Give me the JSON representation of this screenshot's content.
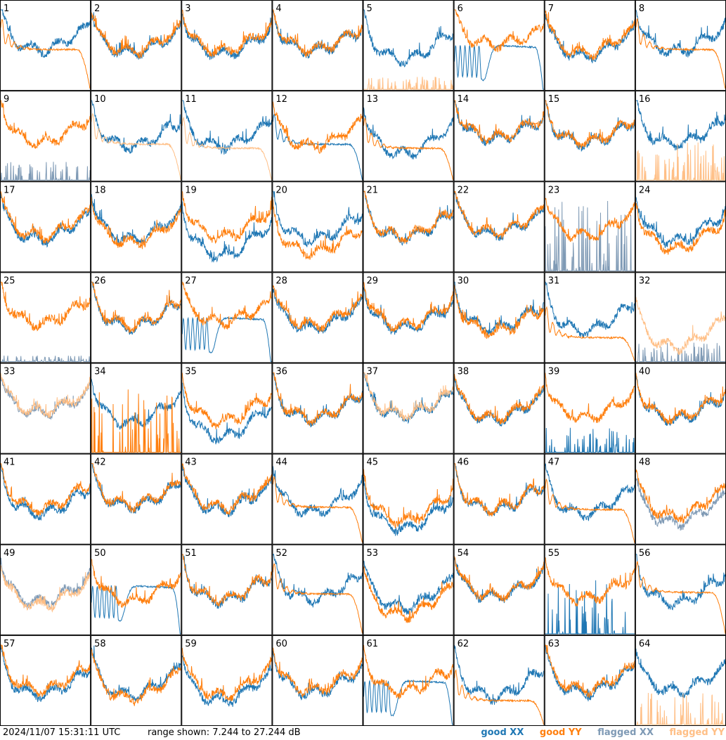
{
  "footer": {
    "timestamp": "2024/11/07 15:31:11 UTC",
    "range_text": "range shown: 7.244 to 27.244 dB"
  },
  "legend": [
    {
      "id": "good_xx",
      "label": "good XX",
      "color": "#1f77b4"
    },
    {
      "id": "good_yy",
      "label": "good YY",
      "color": "#ff7f0e"
    },
    {
      "id": "flagged_xx",
      "label": "flagged XX",
      "color": "#7f9ab5"
    },
    {
      "id": "flagged_yy",
      "label": "flagged YY",
      "color": "#ffbf86"
    }
  ],
  "chart_data": {
    "type": "line",
    "ylim": [
      7.244,
      27.244
    ],
    "grid": {
      "rows": 8,
      "cols": 8
    },
    "panels": [
      {
        "label": "1",
        "xx": {
          "profile": "bandpass",
          "flagged": false,
          "level": 0.72,
          "amp": 0.25
        },
        "yy": {
          "profile": "rolloff",
          "flagged": false,
          "level": 0.5
        }
      },
      {
        "label": "2",
        "xx": {
          "profile": "bandpass",
          "flagged": false,
          "level": 0.66,
          "amp": 0.22
        },
        "yy": {
          "profile": "bandpass",
          "flagged": false,
          "level": 0.68,
          "amp": 0.22
        }
      },
      {
        "label": "3",
        "xx": {
          "profile": "bandpass",
          "flagged": false,
          "level": 0.66,
          "amp": 0.24
        },
        "yy": {
          "profile": "bandpass",
          "flagged": false,
          "level": 0.7,
          "amp": 0.24
        }
      },
      {
        "label": "4",
        "xx": {
          "profile": "bandpass",
          "flagged": false,
          "level": 0.68,
          "amp": 0.22
        },
        "yy": {
          "profile": "bandpass",
          "flagged": false,
          "level": 0.7,
          "amp": 0.22
        }
      },
      {
        "label": "5",
        "xx": {
          "profile": "bandpass",
          "flagged": false,
          "level": 0.64,
          "amp": 0.3
        },
        "yy": {
          "profile": "spikes",
          "flagged": true,
          "level": 0.1
        }
      },
      {
        "label": "6",
        "xx": {
          "profile": "dip",
          "flagged": false,
          "level": 0.45
        },
        "yy": {
          "profile": "bandpass",
          "flagged": false,
          "level": 0.7,
          "amp": 0.15
        }
      },
      {
        "label": "7",
        "xx": {
          "profile": "bandpass",
          "flagged": false,
          "level": 0.64,
          "amp": 0.25
        },
        "yy": {
          "profile": "bandpass",
          "flagged": false,
          "level": 0.68,
          "amp": 0.25
        }
      },
      {
        "label": "8",
        "xx": {
          "profile": "bandpass",
          "flagged": false,
          "level": 0.7,
          "amp": 0.25
        },
        "yy": {
          "profile": "rolloff",
          "flagged": false,
          "level": 0.5
        }
      },
      {
        "label": "9",
        "xx": {
          "profile": "spikes",
          "flagged": true,
          "level": 0.15
        },
        "yy": {
          "profile": "bandpass",
          "flagged": false,
          "level": 0.7,
          "amp": 0.25
        }
      },
      {
        "label": "10",
        "xx": {
          "profile": "bandpass",
          "flagged": false,
          "level": 0.65,
          "amp": 0.25
        },
        "yy": {
          "profile": "rolloff",
          "flagged": true,
          "level": 0.45
        }
      },
      {
        "label": "11",
        "xx": {
          "profile": "bandpass",
          "flagged": false,
          "level": 0.65,
          "amp": 0.25
        },
        "yy": {
          "profile": "rolloff",
          "flagged": true,
          "level": 0.4
        }
      },
      {
        "label": "12",
        "xx": {
          "profile": "rolloff",
          "flagged": false,
          "level": 0.45
        },
        "yy": {
          "profile": "bandpass",
          "flagged": false,
          "level": 0.65,
          "amp": 0.25
        }
      },
      {
        "label": "13",
        "xx": {
          "profile": "bandpass",
          "flagged": false,
          "level": 0.6,
          "amp": 0.3
        },
        "yy": {
          "profile": "rolloff",
          "flagged": false,
          "level": 0.4
        }
      },
      {
        "label": "14",
        "xx": {
          "profile": "bandpass",
          "flagged": false,
          "level": 0.7,
          "amp": 0.2
        },
        "yy": {
          "profile": "bandpass",
          "flagged": false,
          "level": 0.72,
          "amp": 0.2
        }
      },
      {
        "label": "15",
        "xx": {
          "profile": "bandpass",
          "flagged": false,
          "level": 0.66,
          "amp": 0.22
        },
        "yy": {
          "profile": "bandpass",
          "flagged": false,
          "level": 0.68,
          "amp": 0.22
        }
      },
      {
        "label": "16",
        "xx": {
          "profile": "bandpass",
          "flagged": false,
          "level": 0.66,
          "amp": 0.22
        },
        "yy": {
          "profile": "spikes",
          "flagged": true,
          "level": 0.3
        }
      },
      {
        "label": "17",
        "xx": {
          "profile": "bandpass",
          "flagged": false,
          "level": 0.62,
          "amp": 0.25
        },
        "yy": {
          "profile": "bandpass",
          "flagged": false,
          "level": 0.66,
          "amp": 0.25
        }
      },
      {
        "label": "18",
        "xx": {
          "profile": "bandpass",
          "flagged": false,
          "level": 0.64,
          "amp": 0.28
        },
        "yy": {
          "profile": "bandpass",
          "flagged": false,
          "level": 0.6,
          "amp": 0.28
        }
      },
      {
        "label": "19",
        "xx": {
          "profile": "bandpass",
          "flagged": false,
          "level": 0.5,
          "amp": 0.35
        },
        "yy": {
          "profile": "bandpass",
          "flagged": false,
          "level": 0.68,
          "amp": 0.28
        }
      },
      {
        "label": "20",
        "xx": {
          "profile": "bandpass",
          "flagged": false,
          "level": 0.64,
          "amp": 0.28
        },
        "yy": {
          "profile": "bandpass",
          "flagged": false,
          "level": 0.46,
          "amp": 0.25
        }
      },
      {
        "label": "21",
        "xx": {
          "profile": "bandpass",
          "flagged": false,
          "level": 0.64,
          "amp": 0.25
        },
        "yy": {
          "profile": "bandpass",
          "flagged": false,
          "level": 0.66,
          "amp": 0.25
        }
      },
      {
        "label": "22",
        "xx": {
          "profile": "bandpass",
          "flagged": false,
          "level": 0.66,
          "amp": 0.22
        },
        "yy": {
          "profile": "bandpass",
          "flagged": false,
          "level": 0.68,
          "amp": 0.22
        }
      },
      {
        "label": "23",
        "xx": {
          "profile": "spikes",
          "flagged": true,
          "level": 0.55
        },
        "yy": {
          "profile": "bandpass",
          "flagged": false,
          "level": 0.66,
          "amp": 0.25
        }
      },
      {
        "label": "24",
        "xx": {
          "profile": "bandpass",
          "flagged": false,
          "level": 0.64,
          "amp": 0.3
        },
        "yy": {
          "profile": "bandpass",
          "flagged": false,
          "level": 0.55,
          "amp": 0.3
        }
      },
      {
        "label": "25",
        "xx": {
          "profile": "spikes",
          "flagged": true,
          "level": 0.05
        },
        "yy": {
          "profile": "bandpass",
          "flagged": false,
          "level": 0.7,
          "amp": 0.25
        }
      },
      {
        "label": "26",
        "xx": {
          "profile": "bandpass",
          "flagged": false,
          "level": 0.66,
          "amp": 0.25
        },
        "yy": {
          "profile": "bandpass",
          "flagged": false,
          "level": 0.68,
          "amp": 0.25
        }
      },
      {
        "label": "27",
        "xx": {
          "profile": "dip",
          "flagged": false,
          "level": 0.45
        },
        "yy": {
          "profile": "bandpass",
          "flagged": false,
          "level": 0.68,
          "amp": 0.2
        }
      },
      {
        "label": "28",
        "xx": {
          "profile": "bandpass",
          "flagged": false,
          "level": 0.64,
          "amp": 0.25
        },
        "yy": {
          "profile": "bandpass",
          "flagged": false,
          "level": 0.68,
          "amp": 0.25
        }
      },
      {
        "label": "29",
        "xx": {
          "profile": "bandpass",
          "flagged": false,
          "level": 0.64,
          "amp": 0.25
        },
        "yy": {
          "profile": "bandpass",
          "flagged": false,
          "level": 0.68,
          "amp": 0.25
        }
      },
      {
        "label": "30",
        "xx": {
          "profile": "bandpass",
          "flagged": false,
          "level": 0.64,
          "amp": 0.25
        },
        "yy": {
          "profile": "bandpass",
          "flagged": false,
          "level": 0.6,
          "amp": 0.25
        }
      },
      {
        "label": "31",
        "xx": {
          "profile": "bandpass",
          "flagged": false,
          "level": 0.64,
          "amp": 0.28
        },
        "yy": {
          "profile": "rolloff",
          "flagged": false,
          "level": 0.3
        }
      },
      {
        "label": "32",
        "xx": {
          "profile": "spikes",
          "flagged": true,
          "level": 0.15
        },
        "yy": {
          "profile": "bandpass",
          "flagged": true,
          "level": 0.45,
          "amp": 0.3
        }
      },
      {
        "label": "33",
        "xx": {
          "profile": "bandpass",
          "flagged": true,
          "level": 0.68,
          "amp": 0.2
        },
        "yy": {
          "profile": "bandpass",
          "flagged": true,
          "level": 0.7,
          "amp": 0.2
        }
      },
      {
        "label": "34",
        "xx": {
          "profile": "bandpass",
          "flagged": false,
          "level": 0.62,
          "amp": 0.28
        },
        "yy": {
          "profile": "spikes",
          "flagged": false,
          "level": 0.5
        }
      },
      {
        "label": "35",
        "xx": {
          "profile": "bandpass",
          "flagged": false,
          "level": 0.5,
          "amp": 0.35
        },
        "yy": {
          "profile": "bandpass",
          "flagged": false,
          "level": 0.64,
          "amp": 0.28
        }
      },
      {
        "label": "36",
        "xx": {
          "profile": "bandpass",
          "flagged": false,
          "level": 0.64,
          "amp": 0.25
        },
        "yy": {
          "profile": "bandpass",
          "flagged": false,
          "level": 0.66,
          "amp": 0.25
        }
      },
      {
        "label": "37",
        "xx": {
          "profile": "bandpass",
          "flagged": false,
          "level": 0.66,
          "amp": 0.22
        },
        "yy": {
          "profile": "bandpass",
          "flagged": true,
          "level": 0.68,
          "amp": 0.22
        }
      },
      {
        "label": "38",
        "xx": {
          "profile": "bandpass",
          "flagged": false,
          "level": 0.64,
          "amp": 0.25
        },
        "yy": {
          "profile": "bandpass",
          "flagged": false,
          "level": 0.66,
          "amp": 0.25
        }
      },
      {
        "label": "39",
        "xx": {
          "profile": "spikes",
          "flagged": false,
          "level": 0.2
        },
        "yy": {
          "profile": "bandpass",
          "flagged": false,
          "level": 0.66,
          "amp": 0.25
        }
      },
      {
        "label": "40",
        "xx": {
          "profile": "bandpass",
          "flagged": false,
          "level": 0.64,
          "amp": 0.25
        },
        "yy": {
          "profile": "bandpass",
          "flagged": false,
          "level": 0.66,
          "amp": 0.25
        }
      },
      {
        "label": "41",
        "xx": {
          "profile": "bandpass",
          "flagged": false,
          "level": 0.6,
          "amp": 0.25
        },
        "yy": {
          "profile": "bandpass",
          "flagged": false,
          "level": 0.66,
          "amp": 0.25
        }
      },
      {
        "label": "42",
        "xx": {
          "profile": "bandpass",
          "flagged": false,
          "level": 0.66,
          "amp": 0.22
        },
        "yy": {
          "profile": "bandpass",
          "flagged": false,
          "level": 0.68,
          "amp": 0.22
        }
      },
      {
        "label": "43",
        "xx": {
          "profile": "bandpass",
          "flagged": false,
          "level": 0.64,
          "amp": 0.25
        },
        "yy": {
          "profile": "bandpass",
          "flagged": false,
          "level": 0.68,
          "amp": 0.25
        }
      },
      {
        "label": "44",
        "xx": {
          "profile": "bandpass",
          "flagged": false,
          "level": 0.64,
          "amp": 0.28
        },
        "yy": {
          "profile": "rolloff",
          "flagged": false,
          "level": 0.45
        }
      },
      {
        "label": "45",
        "xx": {
          "profile": "bandpass",
          "flagged": false,
          "level": 0.45,
          "amp": 0.3
        },
        "yy": {
          "profile": "bandpass",
          "flagged": false,
          "level": 0.55,
          "amp": 0.3
        }
      },
      {
        "label": "46",
        "xx": {
          "profile": "bandpass",
          "flagged": false,
          "level": 0.64,
          "amp": 0.25
        },
        "yy": {
          "profile": "bandpass",
          "flagged": false,
          "level": 0.66,
          "amp": 0.25
        }
      },
      {
        "label": "47",
        "xx": {
          "profile": "bandpass",
          "flagged": false,
          "level": 0.62,
          "amp": 0.28
        },
        "yy": {
          "profile": "rolloff",
          "flagged": false,
          "level": 0.42
        }
      },
      {
        "label": "48",
        "xx": {
          "profile": "bandpass",
          "flagged": true,
          "level": 0.5,
          "amp": 0.28
        },
        "yy": {
          "profile": "bandpass",
          "flagged": false,
          "level": 0.6,
          "amp": 0.3
        }
      },
      {
        "label": "49",
        "xx": {
          "profile": "bandpass",
          "flagged": true,
          "level": 0.62,
          "amp": 0.25
        },
        "yy": {
          "profile": "bandpass",
          "flagged": true,
          "level": 0.58,
          "amp": 0.25
        }
      },
      {
        "label": "50",
        "xx": {
          "profile": "dip",
          "flagged": false,
          "level": 0.5
        },
        "yy": {
          "profile": "bandpass",
          "flagged": false,
          "level": 0.64,
          "amp": 0.25
        }
      },
      {
        "label": "51",
        "xx": {
          "profile": "bandpass",
          "flagged": false,
          "level": 0.64,
          "amp": 0.25
        },
        "yy": {
          "profile": "bandpass",
          "flagged": false,
          "level": 0.66,
          "amp": 0.25
        }
      },
      {
        "label": "52",
        "xx": {
          "profile": "bandpass",
          "flagged": false,
          "level": 0.66,
          "amp": 0.25
        },
        "yy": {
          "profile": "rolloff",
          "flagged": false,
          "level": 0.5
        }
      },
      {
        "label": "53",
        "xx": {
          "profile": "bandpass",
          "flagged": false,
          "level": 0.6,
          "amp": 0.3
        },
        "yy": {
          "profile": "bandpass",
          "flagged": false,
          "level": 0.5,
          "amp": 0.3
        }
      },
      {
        "label": "54",
        "xx": {
          "profile": "bandpass",
          "flagged": false,
          "level": 0.66,
          "amp": 0.22
        },
        "yy": {
          "profile": "bandpass",
          "flagged": false,
          "level": 0.68,
          "amp": 0.22
        }
      },
      {
        "label": "55",
        "xx": {
          "profile": "spikes",
          "flagged": false,
          "level": 0.45
        },
        "yy": {
          "profile": "bandpass",
          "flagged": false,
          "level": 0.66,
          "amp": 0.25
        }
      },
      {
        "label": "56",
        "xx": {
          "profile": "bandpass",
          "flagged": false,
          "level": 0.64,
          "amp": 0.28
        },
        "yy": {
          "profile": "rolloff",
          "flagged": false,
          "level": 0.52
        }
      },
      {
        "label": "57",
        "xx": {
          "profile": "bandpass",
          "flagged": false,
          "level": 0.6,
          "amp": 0.25
        },
        "yy": {
          "profile": "bandpass",
          "flagged": false,
          "level": 0.66,
          "amp": 0.25
        }
      },
      {
        "label": "58",
        "xx": {
          "profile": "bandpass",
          "flagged": false,
          "level": 0.62,
          "amp": 0.28
        },
        "yy": {
          "profile": "bandpass",
          "flagged": false,
          "level": 0.58,
          "amp": 0.28
        }
      },
      {
        "label": "59",
        "xx": {
          "profile": "bandpass",
          "flagged": false,
          "level": 0.56,
          "amp": 0.3
        },
        "yy": {
          "profile": "bandpass",
          "flagged": false,
          "level": 0.64,
          "amp": 0.3
        }
      },
      {
        "label": "60",
        "xx": {
          "profile": "bandpass",
          "flagged": false,
          "level": 0.62,
          "amp": 0.25
        },
        "yy": {
          "profile": "bandpass",
          "flagged": false,
          "level": 0.66,
          "amp": 0.25
        }
      },
      {
        "label": "61",
        "xx": {
          "profile": "dip",
          "flagged": false,
          "level": 0.45
        },
        "yy": {
          "profile": "bandpass",
          "flagged": false,
          "level": 0.64,
          "amp": 0.25
        }
      },
      {
        "label": "62",
        "xx": {
          "profile": "bandpass",
          "flagged": false,
          "level": 0.6,
          "amp": 0.28
        },
        "yy": {
          "profile": "rolloff",
          "flagged": false,
          "level": 0.3
        }
      },
      {
        "label": "63",
        "xx": {
          "profile": "bandpass",
          "flagged": false,
          "level": 0.62,
          "amp": 0.25
        },
        "yy": {
          "profile": "bandpass",
          "flagged": false,
          "level": 0.66,
          "amp": 0.25
        }
      },
      {
        "label": "64",
        "xx": {
          "profile": "bandpass",
          "flagged": false,
          "level": 0.64,
          "amp": 0.25
        },
        "yy": {
          "profile": "spikes",
          "flagged": true,
          "level": 0.25
        }
      }
    ]
  }
}
